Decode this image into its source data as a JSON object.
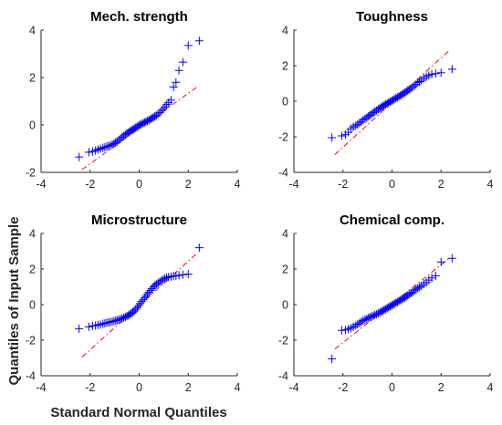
{
  "figure": {
    "xlabel": "Standard Normal Quantiles",
    "ylabel": "Quantiles of Input Sample"
  },
  "chart_data": [
    {
      "type": "scatter",
      "title": "Mech. strength",
      "xlim": [
        -4,
        4
      ],
      "ylim": [
        -2,
        4
      ],
      "xticks": [
        -4,
        -2,
        0,
        2,
        4
      ],
      "yticks": [
        -2,
        0,
        2,
        4
      ],
      "marker_color": "#0000ff",
      "line_color": "#ff0000",
      "reference_line": {
        "x": [
          -2.33,
          2.33
        ],
        "y": [
          -1.88,
          1.58
        ]
      },
      "points": [
        [
          -2.45,
          -1.35
        ],
        [
          -2.05,
          -1.15
        ],
        [
          -1.9,
          -1.12
        ],
        [
          -1.78,
          -1.08
        ],
        [
          -1.68,
          -1.04
        ],
        [
          -1.58,
          -1.0
        ],
        [
          -1.48,
          -0.96
        ],
        [
          -1.4,
          -0.94
        ],
        [
          -1.32,
          -0.91
        ],
        [
          -1.25,
          -0.89
        ],
        [
          -1.18,
          -0.86
        ],
        [
          -1.1,
          -0.83
        ],
        [
          -1.03,
          -0.79
        ],
        [
          -0.96,
          -0.74
        ],
        [
          -0.9,
          -0.7
        ],
        [
          -0.83,
          -0.64
        ],
        [
          -0.76,
          -0.58
        ],
        [
          -0.7,
          -0.52
        ],
        [
          -0.63,
          -0.46
        ],
        [
          -0.56,
          -0.41
        ],
        [
          -0.5,
          -0.36
        ],
        [
          -0.44,
          -0.32
        ],
        [
          -0.38,
          -0.27
        ],
        [
          -0.32,
          -0.23
        ],
        [
          -0.26,
          -0.19
        ],
        [
          -0.2,
          -0.15
        ],
        [
          -0.14,
          -0.11
        ],
        [
          -0.08,
          -0.07
        ],
        [
          -0.02,
          -0.03
        ],
        [
          0.04,
          0.01
        ],
        [
          0.1,
          0.04
        ],
        [
          0.16,
          0.08
        ],
        [
          0.22,
          0.11
        ],
        [
          0.28,
          0.14
        ],
        [
          0.34,
          0.17
        ],
        [
          0.4,
          0.2
        ],
        [
          0.46,
          0.24
        ],
        [
          0.52,
          0.28
        ],
        [
          0.58,
          0.32
        ],
        [
          0.64,
          0.36
        ],
        [
          0.7,
          0.4
        ],
        [
          0.77,
          0.46
        ],
        [
          0.84,
          0.52
        ],
        [
          0.91,
          0.6
        ],
        [
          0.98,
          0.68
        ],
        [
          1.05,
          0.76
        ],
        [
          1.12,
          0.86
        ],
        [
          1.2,
          0.94
        ],
        [
          1.3,
          1.05
        ],
        [
          1.4,
          1.6
        ],
        [
          1.5,
          1.8
        ],
        [
          1.62,
          2.3
        ],
        [
          1.78,
          2.65
        ],
        [
          2.0,
          3.35
        ],
        [
          2.45,
          3.55
        ]
      ]
    },
    {
      "type": "scatter",
      "title": "Toughness",
      "xlim": [
        -4,
        4
      ],
      "ylim": [
        -4,
        4
      ],
      "xticks": [
        -4,
        -2,
        0,
        2,
        4
      ],
      "yticks": [
        -4,
        -2,
        0,
        2,
        4
      ],
      "marker_color": "#0000ff",
      "line_color": "#ff0000",
      "reference_line": {
        "x": [
          -2.33,
          2.33
        ],
        "y": [
          -3.0,
          2.85
        ]
      },
      "points": [
        [
          -2.45,
          -2.05
        ],
        [
          -2.05,
          -1.95
        ],
        [
          -1.9,
          -1.88
        ],
        [
          -1.78,
          -1.75
        ],
        [
          -1.68,
          -1.55
        ],
        [
          -1.58,
          -1.45
        ],
        [
          -1.48,
          -1.38
        ],
        [
          -1.4,
          -1.3
        ],
        [
          -1.32,
          -1.22
        ],
        [
          -1.25,
          -1.15
        ],
        [
          -1.18,
          -1.05
        ],
        [
          -1.1,
          -0.98
        ],
        [
          -1.03,
          -0.92
        ],
        [
          -0.96,
          -0.84
        ],
        [
          -0.9,
          -0.78
        ],
        [
          -0.83,
          -0.72
        ],
        [
          -0.76,
          -0.64
        ],
        [
          -0.7,
          -0.58
        ],
        [
          -0.63,
          -0.52
        ],
        [
          -0.56,
          -0.45
        ],
        [
          -0.5,
          -0.4
        ],
        [
          -0.44,
          -0.34
        ],
        [
          -0.38,
          -0.29
        ],
        [
          -0.32,
          -0.23
        ],
        [
          -0.26,
          -0.18
        ],
        [
          -0.2,
          -0.13
        ],
        [
          -0.14,
          -0.08
        ],
        [
          -0.08,
          -0.03
        ],
        [
          -0.02,
          0.02
        ],
        [
          0.04,
          0.07
        ],
        [
          0.1,
          0.12
        ],
        [
          0.16,
          0.17
        ],
        [
          0.22,
          0.22
        ],
        [
          0.28,
          0.27
        ],
        [
          0.34,
          0.32
        ],
        [
          0.4,
          0.37
        ],
        [
          0.46,
          0.42
        ],
        [
          0.52,
          0.48
        ],
        [
          0.58,
          0.54
        ],
        [
          0.64,
          0.6
        ],
        [
          0.7,
          0.66
        ],
        [
          0.77,
          0.72
        ],
        [
          0.84,
          0.8
        ],
        [
          0.91,
          0.88
        ],
        [
          0.98,
          0.95
        ],
        [
          1.05,
          1.05
        ],
        [
          1.12,
          1.1
        ],
        [
          1.2,
          1.18
        ],
        [
          1.3,
          1.28
        ],
        [
          1.4,
          1.38
        ],
        [
          1.5,
          1.45
        ],
        [
          1.62,
          1.52
        ],
        [
          1.78,
          1.55
        ],
        [
          2.0,
          1.6
        ],
        [
          2.45,
          1.8
        ]
      ]
    },
    {
      "type": "scatter",
      "title": "Microstructure",
      "xlim": [
        -4,
        4
      ],
      "ylim": [
        -4,
        4
      ],
      "xticks": [
        -4,
        -2,
        0,
        2,
        4
      ],
      "yticks": [
        -4,
        -2,
        0,
        2,
        4
      ],
      "marker_color": "#0000ff",
      "line_color": "#ff0000",
      "reference_line": {
        "x": [
          -2.33,
          2.33
        ],
        "y": [
          -2.95,
          2.85
        ]
      },
      "points": [
        [
          -2.45,
          -1.35
        ],
        [
          -2.05,
          -1.25
        ],
        [
          -1.9,
          -1.2
        ],
        [
          -1.78,
          -1.18
        ],
        [
          -1.68,
          -1.15
        ],
        [
          -1.58,
          -1.12
        ],
        [
          -1.48,
          -1.08
        ],
        [
          -1.4,
          -1.05
        ],
        [
          -1.32,
          -1.02
        ],
        [
          -1.25,
          -1.0
        ],
        [
          -1.18,
          -0.98
        ],
        [
          -1.1,
          -0.95
        ],
        [
          -1.03,
          -0.93
        ],
        [
          -0.96,
          -0.9
        ],
        [
          -0.9,
          -0.88
        ],
        [
          -0.83,
          -0.85
        ],
        [
          -0.76,
          -0.82
        ],
        [
          -0.7,
          -0.78
        ],
        [
          -0.63,
          -0.74
        ],
        [
          -0.56,
          -0.7
        ],
        [
          -0.5,
          -0.65
        ],
        [
          -0.44,
          -0.6
        ],
        [
          -0.38,
          -0.55
        ],
        [
          -0.32,
          -0.49
        ],
        [
          -0.26,
          -0.42
        ],
        [
          -0.2,
          -0.35
        ],
        [
          -0.14,
          -0.26
        ],
        [
          -0.08,
          -0.17
        ],
        [
          -0.02,
          -0.06
        ],
        [
          0.04,
          0.06
        ],
        [
          0.1,
          0.17
        ],
        [
          0.16,
          0.27
        ],
        [
          0.22,
          0.38
        ],
        [
          0.28,
          0.48
        ],
        [
          0.34,
          0.6
        ],
        [
          0.4,
          0.7
        ],
        [
          0.46,
          0.8
        ],
        [
          0.52,
          0.9
        ],
        [
          0.58,
          1.0
        ],
        [
          0.64,
          1.08
        ],
        [
          0.7,
          1.15
        ],
        [
          0.77,
          1.22
        ],
        [
          0.84,
          1.28
        ],
        [
          0.91,
          1.35
        ],
        [
          0.98,
          1.42
        ],
        [
          1.05,
          1.48
        ],
        [
          1.12,
          1.52
        ],
        [
          1.2,
          1.55
        ],
        [
          1.3,
          1.58
        ],
        [
          1.4,
          1.6
        ],
        [
          1.5,
          1.62
        ],
        [
          1.62,
          1.65
        ],
        [
          1.78,
          1.68
        ],
        [
          2.0,
          1.72
        ],
        [
          2.45,
          3.2
        ]
      ]
    },
    {
      "type": "scatter",
      "title": "Chemical comp.",
      "xlim": [
        -4,
        4
      ],
      "ylim": [
        -4,
        4
      ],
      "xticks": [
        -4,
        -2,
        0,
        2,
        4
      ],
      "yticks": [
        -4,
        -2,
        0,
        2,
        4
      ],
      "marker_color": "#0000ff",
      "line_color": "#ff0000",
      "reference_line": {
        "x": [
          -2.33,
          2.33
        ],
        "y": [
          -2.5,
          2.6
        ]
      },
      "points": [
        [
          -2.45,
          -3.05
        ],
        [
          -2.05,
          -1.45
        ],
        [
          -1.9,
          -1.42
        ],
        [
          -1.78,
          -1.38
        ],
        [
          -1.68,
          -1.32
        ],
        [
          -1.58,
          -1.25
        ],
        [
          -1.48,
          -1.18
        ],
        [
          -1.4,
          -1.1
        ],
        [
          -1.32,
          -1.03
        ],
        [
          -1.25,
          -0.96
        ],
        [
          -1.18,
          -0.9
        ],
        [
          -1.1,
          -0.85
        ],
        [
          -1.03,
          -0.8
        ],
        [
          -0.96,
          -0.75
        ],
        [
          -0.9,
          -0.7
        ],
        [
          -0.83,
          -0.66
        ],
        [
          -0.76,
          -0.62
        ],
        [
          -0.7,
          -0.58
        ],
        [
          -0.63,
          -0.54
        ],
        [
          -0.56,
          -0.5
        ],
        [
          -0.5,
          -0.45
        ],
        [
          -0.44,
          -0.4
        ],
        [
          -0.38,
          -0.35
        ],
        [
          -0.32,
          -0.3
        ],
        [
          -0.26,
          -0.25
        ],
        [
          -0.2,
          -0.2
        ],
        [
          -0.14,
          -0.15
        ],
        [
          -0.08,
          -0.1
        ],
        [
          -0.02,
          -0.05
        ],
        [
          0.04,
          0.0
        ],
        [
          0.1,
          0.05
        ],
        [
          0.16,
          0.1
        ],
        [
          0.22,
          0.15
        ],
        [
          0.28,
          0.2
        ],
        [
          0.34,
          0.25
        ],
        [
          0.4,
          0.3
        ],
        [
          0.46,
          0.35
        ],
        [
          0.52,
          0.4
        ],
        [
          0.58,
          0.46
        ],
        [
          0.64,
          0.52
        ],
        [
          0.7,
          0.58
        ],
        [
          0.77,
          0.64
        ],
        [
          0.84,
          0.7
        ],
        [
          0.91,
          0.78
        ],
        [
          0.98,
          0.86
        ],
        [
          1.05,
          0.92
        ],
        [
          1.12,
          0.98
        ],
        [
          1.2,
          1.05
        ],
        [
          1.3,
          1.15
        ],
        [
          1.4,
          1.25
        ],
        [
          1.5,
          1.38
        ],
        [
          1.62,
          1.5
        ],
        [
          1.78,
          1.62
        ],
        [
          2.0,
          2.4
        ],
        [
          2.45,
          2.6
        ]
      ]
    }
  ]
}
